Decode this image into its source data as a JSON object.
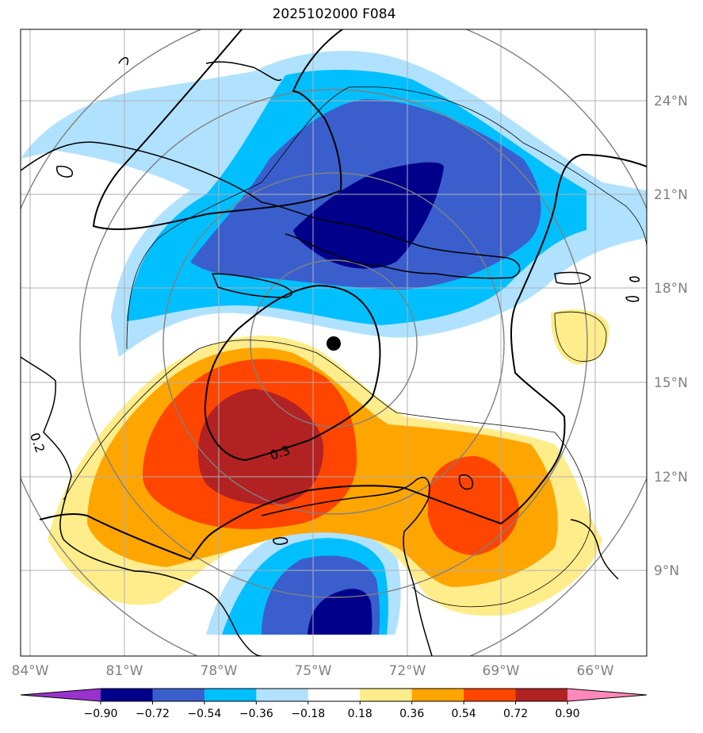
{
  "title": "2025102000 F084",
  "map": {
    "lat_labels": [
      "24°N",
      "21°N",
      "18°N",
      "15°N",
      "12°N",
      "9°N"
    ],
    "lon_labels": [
      "84°W",
      "81°W",
      "78°W",
      "75°W",
      "72°W",
      "69°W",
      "66°W"
    ],
    "contour_labels": [
      "0.3",
      "0.2"
    ],
    "label_color": "#808080",
    "grid_color": "#b0b0b0",
    "contour_color": "#000000",
    "center_marker": "storm-center-dot"
  },
  "colorbar": {
    "ticks": [
      "−0.90",
      "−0.72",
      "−0.54",
      "−0.36",
      "−0.18",
      "0.18",
      "0.36",
      "0.54",
      "0.72",
      "0.90"
    ],
    "colors": [
      "#9932cc",
      "#00008b",
      "#3a5fcd",
      "#00bfff",
      "#b0e2ff",
      "#ffffff",
      "#ffec8b",
      "#ffa500",
      "#ff4500",
      "#b22222",
      "#ff88bb"
    ]
  }
}
